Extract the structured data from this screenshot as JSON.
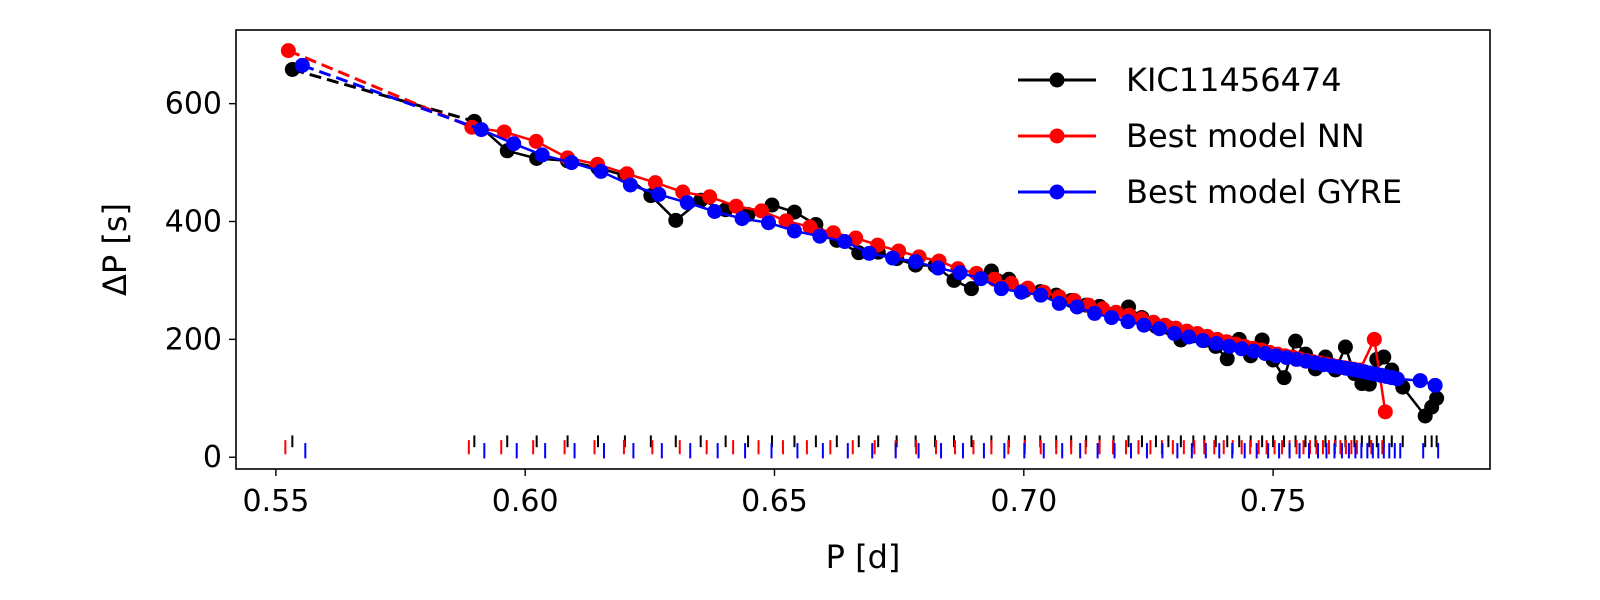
{
  "chart_data": {
    "type": "line",
    "xlabel": "P [d]",
    "ylabel": "ΔP [s]",
    "xlim": [
      0.542,
      0.7935
    ],
    "ylim": [
      -20,
      725
    ],
    "xticks": [
      {
        "value": 0.55,
        "label": "0.55"
      },
      {
        "value": 0.6,
        "label": "0.60"
      },
      {
        "value": 0.65,
        "label": "0.65"
      },
      {
        "value": 0.7,
        "label": "0.70"
      },
      {
        "value": 0.75,
        "label": "0.75"
      }
    ],
    "yticks": [
      {
        "value": 0,
        "label": "0"
      },
      {
        "value": 200,
        "label": "200"
      },
      {
        "value": 400,
        "label": "400"
      },
      {
        "value": 600,
        "label": "600"
      }
    ],
    "legend_position": "top-right",
    "period_markers_note": "short vertical markers near the x-axis indicate each series' mode periods",
    "series": [
      {
        "name": "KIC11456474",
        "color": "#000000",
        "x": [
          0.5533,
          0.5898,
          0.5964,
          0.6023,
          0.6085,
          0.6146,
          0.62,
          0.6252,
          0.6302,
          0.6352,
          0.6402,
          0.6447,
          0.6495,
          0.654,
          0.6583,
          0.6625,
          0.6669,
          0.6708,
          0.6745,
          0.6783,
          0.6822,
          0.686,
          0.6895,
          0.6935,
          0.697,
          0.7002,
          0.7033,
          0.7065,
          0.7095,
          0.7125,
          0.7152,
          0.718,
          0.721,
          0.7237,
          0.7265,
          0.729,
          0.7315,
          0.734,
          0.7362,
          0.7385,
          0.7408,
          0.7432,
          0.7455,
          0.7478,
          0.75,
          0.7522,
          0.7545,
          0.7565,
          0.7585,
          0.7605,
          0.7625,
          0.7645,
          0.7663,
          0.7678,
          0.7693,
          0.7708,
          0.7722,
          0.7738,
          0.776,
          0.7805,
          0.7818,
          0.7828
        ],
        "y": [
          658,
          570,
          520,
          507,
          503,
          491,
          478,
          444,
          402,
          436,
          420,
          412,
          428,
          416,
          395,
          368,
          347,
          348,
          337,
          326,
          325,
          300,
          286,
          316,
          302,
          283,
          281,
          275,
          266,
          258,
          256,
          243,
          255,
          237,
          222,
          220,
          199,
          206,
          198,
          188,
          167,
          200,
          172,
          199,
          165,
          135,
          197,
          175,
          150,
          170,
          148,
          187,
          142,
          125,
          124,
          166,
          170,
          148,
          119,
          70,
          85,
          100
        ]
      },
      {
        "name": "Best model NN",
        "color": "#ff0000",
        "x": [
          0.5525,
          0.5893,
          0.5958,
          0.6022,
          0.6085,
          0.6145,
          0.6204,
          0.6261,
          0.6316,
          0.637,
          0.6423,
          0.6474,
          0.6523,
          0.6571,
          0.6618,
          0.6663,
          0.6707,
          0.6749,
          0.679,
          0.683,
          0.6868,
          0.6905,
          0.6941,
          0.6975,
          0.7008,
          0.704,
          0.7071,
          0.7101,
          0.713,
          0.7158,
          0.7185,
          0.7211,
          0.7236,
          0.726,
          0.7283,
          0.7305,
          0.7327,
          0.7348,
          0.7368,
          0.7388,
          0.7407,
          0.7425,
          0.7443,
          0.746,
          0.7477,
          0.7493,
          0.7509,
          0.7524,
          0.7539,
          0.7553,
          0.7567,
          0.758,
          0.7593,
          0.7606,
          0.7618,
          0.763,
          0.7641,
          0.7652,
          0.7663,
          0.7674,
          0.7703,
          0.7725
        ],
        "y": [
          690,
          560,
          552,
          536,
          508,
          497,
          481,
          466,
          450,
          442,
          426,
          418,
          401,
          391,
          381,
          372,
          360,
          350,
          340,
          333,
          320,
          312,
          302,
          295,
          287,
          280,
          272,
          266,
          258,
          252,
          246,
          241,
          235,
          229,
          224,
          219,
          214,
          210,
          205,
          200,
          196,
          192,
          188,
          185,
          182,
          178,
          175,
          172,
          170,
          167,
          164,
          162,
          160,
          158,
          156,
          154,
          152,
          151,
          149,
          148,
          200,
          77
        ]
      },
      {
        "name": "Best model GYRE",
        "color": "#0000ff",
        "x": [
          0.5553,
          0.5912,
          0.5977,
          0.6034,
          0.6093,
          0.6152,
          0.6211,
          0.6268,
          0.6325,
          0.638,
          0.6435,
          0.6488,
          0.654,
          0.6591,
          0.6641,
          0.669,
          0.6737,
          0.6783,
          0.6828,
          0.6872,
          0.6914,
          0.6955,
          0.6995,
          0.7034,
          0.7071,
          0.7107,
          0.7142,
          0.7176,
          0.7209,
          0.7241,
          0.7272,
          0.7302,
          0.7331,
          0.7359,
          0.7386,
          0.7412,
          0.7437,
          0.7461,
          0.7484,
          0.7506,
          0.7527,
          0.7547,
          0.7566,
          0.7584,
          0.7601,
          0.7617,
          0.7632,
          0.7646,
          0.7659,
          0.7671,
          0.7683,
          0.7694,
          0.7705,
          0.7716,
          0.7727,
          0.7738,
          0.7749,
          0.7795,
          0.7825
        ],
        "y": [
          665,
          556,
          532,
          513,
          500,
          485,
          462,
          446,
          432,
          417,
          405,
          398,
          384,
          375,
          366,
          346,
          338,
          332,
          321,
          313,
          303,
          286,
          280,
          275,
          261,
          255,
          244,
          237,
          230,
          224,
          218,
          210,
          204,
          198,
          193,
          188,
          184,
          180,
          176,
          172,
          169,
          166,
          163,
          160,
          157,
          155,
          153,
          151,
          149,
          147,
          145,
          143,
          141,
          139,
          137,
          135,
          133,
          130,
          122
        ]
      }
    ]
  }
}
